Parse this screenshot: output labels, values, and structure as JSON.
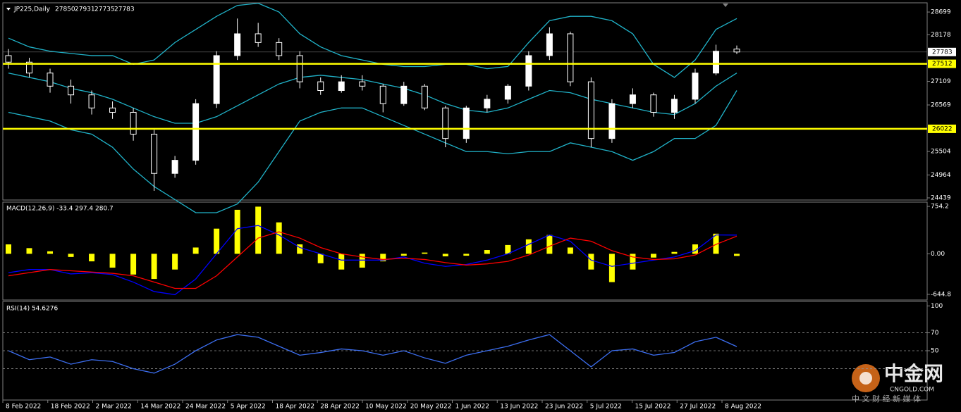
{
  "chart_data": {
    "type": "candlestick",
    "title": "JP225,Daily",
    "ohlc": [
      27850,
      27931,
      27735,
      27783
    ],
    "last_price": 27783,
    "levels": [
      27512,
      26022
    ],
    "level_color": "#ffff00",
    "up_color": "#ffffff",
    "down_color": "#000000",
    "wick_color": "#ffffff",
    "band_color": "#20b2c8",
    "ylim": [
      24390,
      28910
    ],
    "yticks": [
      28699,
      28178,
      27109,
      26569,
      25504,
      24964,
      24439
    ],
    "x_labels": [
      "8 Feb 2022",
      "18 Feb 2022",
      "2 Mar 2022",
      "14 Mar 2022",
      "24 Mar 2022",
      "5 Apr 2022",
      "18 Apr 2022",
      "28 Apr 2022",
      "10 May 2022",
      "20 May 2022",
      "1 Jun 2022",
      "13 Jun 2022",
      "23 Jun 2022",
      "5 Jul 2022",
      "15 Jul 2022",
      "27 Jul 2022",
      "8 Aug 2022"
    ],
    "open": [
      27700,
      27550,
      27300,
      27000,
      26800,
      26500,
      26400,
      25900,
      25000,
      25300,
      26600,
      27700,
      28200,
      28000,
      27700,
      27100,
      26900,
      27100,
      27000,
      26600,
      27000,
      26500,
      25800,
      26500,
      26700,
      27000,
      27700,
      28200,
      27100,
      25800,
      26600,
      26800,
      26400,
      26700,
      27300,
      27850
    ],
    "high": [
      27850,
      27650,
      27400,
      27150,
      26900,
      26650,
      26500,
      26000,
      25400,
      26700,
      27800,
      28550,
      28450,
      28100,
      27800,
      27200,
      27250,
      27250,
      27050,
      27100,
      27050,
      26550,
      26550,
      26800,
      27050,
      27800,
      28350,
      28250,
      27200,
      26700,
      26950,
      26850,
      26800,
      27400,
      27950,
      27931
    ],
    "low": [
      27400,
      27200,
      26850,
      26600,
      26350,
      26250,
      25750,
      24600,
      24900,
      25200,
      26500,
      27600,
      27900,
      27600,
      26950,
      26800,
      26850,
      26900,
      26400,
      26550,
      26450,
      25600,
      25700,
      26400,
      26600,
      26900,
      27600,
      27000,
      25600,
      25700,
      26500,
      26300,
      26250,
      26600,
      27250,
      27735
    ],
    "close": [
      27550,
      27300,
      27000,
      26800,
      26500,
      26400,
      25900,
      25000,
      25300,
      26600,
      27700,
      28200,
      28000,
      27700,
      27100,
      26900,
      27100,
      27000,
      26600,
      27000,
      26500,
      25800,
      26500,
      26700,
      27000,
      27700,
      28200,
      27100,
      25800,
      26600,
      26800,
      26400,
      26700,
      27300,
      27800,
      27783
    ],
    "bands": [
      {
        "values": [
          28100,
          27900,
          27800,
          27750,
          27700,
          27700,
          27500,
          27600,
          28000,
          28300,
          28600,
          28850,
          28900,
          28700,
          28200,
          27900,
          27700,
          27600,
          27500,
          27450,
          27450,
          27500,
          27500,
          27400,
          27450,
          28000,
          28500,
          28600,
          28600,
          28500,
          28200,
          27500,
          27200,
          27600,
          28300,
          28550
        ]
      },
      {
        "values": [
          27300,
          27200,
          27100,
          26950,
          26850,
          26700,
          26500,
          26300,
          26150,
          26150,
          26300,
          26550,
          26800,
          27050,
          27200,
          27250,
          27200,
          27150,
          27050,
          26950,
          26800,
          26600,
          26450,
          26400,
          26500,
          26700,
          26900,
          26850,
          26700,
          26600,
          26500,
          26400,
          26350,
          26600,
          27000,
          27300
        ]
      },
      {
        "values": [
          26400,
          26300,
          26200,
          26000,
          25900,
          25600,
          25100,
          24700,
          24400,
          24100,
          24100,
          24300,
          24800,
          25500,
          26200,
          26400,
          26500,
          26500,
          26300,
          26100,
          25900,
          25700,
          25500,
          25500,
          25450,
          25500,
          25500,
          25700,
          25600,
          25500,
          25300,
          25500,
          25800,
          25800,
          26100,
          26900
        ]
      }
    ],
    "macd": {
      "title": "MACD(12,26,9) -33.4 297.4 280.7",
      "ylim": [
        -735,
        822
      ],
      "yticks": [
        754.2,
        {
          "value": 0,
          "label": "0.00"
        },
        -644.8
      ],
      "histogram": {
        "color": "#ffff00",
        "values": [
          150,
          90,
          40,
          -50,
          -120,
          -220,
          -330,
          -400,
          -250,
          100,
          400,
          700,
          750,
          500,
          150,
          -150,
          -250,
          -220,
          -120,
          -30,
          20,
          -40,
          -30,
          60,
          140,
          230,
          300,
          100,
          -250,
          -450,
          -250,
          -60,
          30,
          150,
          320,
          -33.4
        ]
      },
      "series": [
        {
          "color": "#0000ff",
          "values": [
            -300,
            -250,
            -250,
            -320,
            -300,
            -330,
            -450,
            -600,
            -650,
            -400,
            0,
            400,
            450,
            300,
            100,
            0,
            -100,
            -100,
            -100,
            -50,
            -150,
            -200,
            -170,
            -100,
            0,
            150,
            300,
            200,
            -100,
            -200,
            -150,
            -100,
            -50,
            50,
            300,
            297.4
          ]
        },
        {
          "color": "#ff0000",
          "values": [
            -350,
            -300,
            -250,
            -270,
            -290,
            -310,
            -350,
            -450,
            -550,
            -550,
            -350,
            -50,
            250,
            350,
            250,
            100,
            0,
            -50,
            -90,
            -70,
            -90,
            -140,
            -180,
            -160,
            -120,
            -20,
            120,
            250,
            200,
            50,
            -50,
            -90,
            -80,
            -20,
            150,
            280.7
          ]
        }
      ]
    },
    "rsi": {
      "title": "RSI(14) 54.6276",
      "ylim": [
        -5,
        105
      ],
      "yticks": [
        100,
        70,
        50
      ],
      "levels": [
        70,
        50,
        30
      ],
      "color": "#3c6ef0",
      "values": [
        50,
        40,
        43,
        35,
        40,
        38,
        30,
        25,
        35,
        50,
        62,
        68,
        65,
        55,
        45,
        48,
        52,
        50,
        45,
        50,
        42,
        36,
        45,
        50,
        55,
        62,
        68,
        50,
        32,
        50,
        52,
        45,
        48,
        60,
        65,
        54.6276
      ]
    },
    "watermark": {
      "brand": "中金网",
      "site": "CNGOLD.COM",
      "tagline": "中 文 财 经 新 媒 体"
    }
  }
}
